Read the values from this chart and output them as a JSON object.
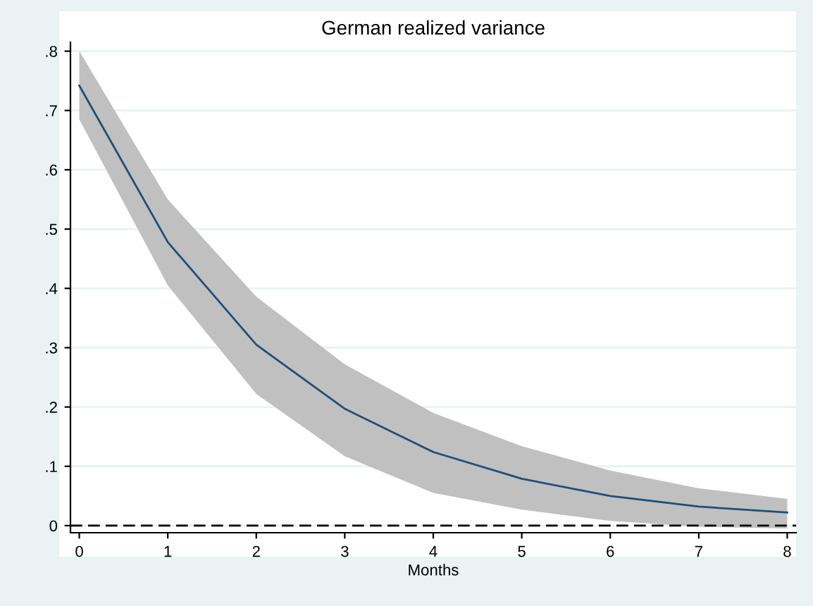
{
  "chart_data": {
    "type": "line",
    "title": "German realized variance",
    "xlabel": "Months",
    "x": [
      0,
      1,
      2,
      3,
      4,
      5,
      6,
      7,
      8
    ],
    "series": [
      {
        "color": "#1f4e79",
        "values": [
          0.742,
          0.478,
          0.305,
          0.197,
          0.124,
          0.079,
          0.05,
          0.032,
          0.022
        ],
        "lower": [
          0.685,
          0.405,
          0.222,
          0.117,
          0.055,
          0.027,
          0.008,
          -0.002,
          -0.005
        ],
        "upper": [
          0.8,
          0.55,
          0.386,
          0.272,
          0.19,
          0.134,
          0.093,
          0.063,
          0.045
        ]
      }
    ],
    "xlim": [
      -0.1,
      8.1
    ],
    "ylim": [
      -0.012,
      0.815
    ],
    "xticks": [
      0,
      1,
      2,
      3,
      4,
      5,
      6,
      7,
      8
    ],
    "yticks": [
      {
        "value": 0,
        "label": "0"
      },
      {
        "value": 0.1,
        "label": ".1"
      },
      {
        "value": 0.2,
        "label": ".2"
      },
      {
        "value": 0.3,
        "label": ".3"
      },
      {
        "value": 0.4,
        "label": ".4"
      },
      {
        "value": 0.5,
        "label": ".5"
      },
      {
        "value": 0.6,
        "label": ".6"
      },
      {
        "value": 0.7,
        "label": ".7"
      },
      {
        "value": 0.8,
        "label": ".8"
      }
    ],
    "grid": "y",
    "ref_lines": [
      {
        "axis": "y",
        "value": 0,
        "color": "#000000",
        "line_style": "dashed"
      }
    ]
  }
}
